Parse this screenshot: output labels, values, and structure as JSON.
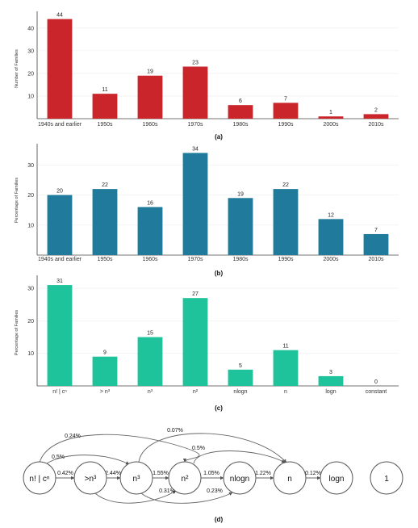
{
  "chart_data": [
    {
      "type": "bar",
      "caption": "(a)",
      "ylabel": "Number of Families",
      "categories": [
        "1940s and earlier",
        "1950s",
        "1960s",
        "1970s",
        "1980s",
        "1990s",
        "2000s",
        "2010s"
      ],
      "values": [
        44,
        11,
        19,
        23,
        6,
        7,
        1,
        2
      ],
      "yticks": [
        10,
        20,
        30,
        40
      ],
      "ylim": [
        0,
        46
      ],
      "color": "#c9252b"
    },
    {
      "type": "bar",
      "caption": "(b)",
      "ylabel": "Percentage of Families",
      "categories": [
        "1940s and earlier",
        "1950s",
        "1960s",
        "1970s",
        "1980s",
        "1990s",
        "2000s",
        "2010s"
      ],
      "values": [
        20,
        22,
        16,
        34,
        19,
        22,
        12,
        7
      ],
      "yticks": [
        10,
        20,
        30
      ],
      "ylim": [
        0,
        36
      ],
      "color": "#1f7a9c"
    },
    {
      "type": "bar",
      "caption": "(c)",
      "ylabel": "Percentage of Families",
      "categories": [
        "n! | cⁿ",
        "> n³",
        "n³",
        "n²",
        "nlogn",
        "n",
        "logn",
        "constant"
      ],
      "values": [
        31,
        9,
        15,
        27,
        5,
        11,
        3,
        0
      ],
      "yticks": [
        10,
        20,
        30
      ],
      "ylim": [
        0,
        33
      ],
      "color": "#1fc39b"
    }
  ],
  "diagram": {
    "caption": "(d)",
    "nodes": [
      "n! | cⁿ",
      ">n³",
      "n³",
      "n²",
      "nlogn",
      "n",
      "logn",
      "1"
    ],
    "edges": [
      {
        "from": 0,
        "to": 1,
        "label": "0.42%"
      },
      {
        "from": 1,
        "to": 2,
        "label": "2.44%"
      },
      {
        "from": 2,
        "to": 3,
        "label": "1.55%"
      },
      {
        "from": 3,
        "to": 4,
        "label": "1.05%"
      },
      {
        "from": 4,
        "to": 5,
        "label": "1.22%"
      },
      {
        "from": 5,
        "to": 6,
        "label": "0.12%"
      },
      {
        "from": 0,
        "to": 3,
        "label": "0.24%"
      },
      {
        "from": 0,
        "to": 2,
        "label": "0.5%"
      },
      {
        "from": 2,
        "to": 5,
        "label": "0.07%"
      },
      {
        "from": 3,
        "to": 5,
        "label": "0.5%"
      },
      {
        "from": 1,
        "to": 3,
        "label": "0.31%"
      },
      {
        "from": 2,
        "to": 4,
        "label": "0.23%"
      }
    ]
  }
}
